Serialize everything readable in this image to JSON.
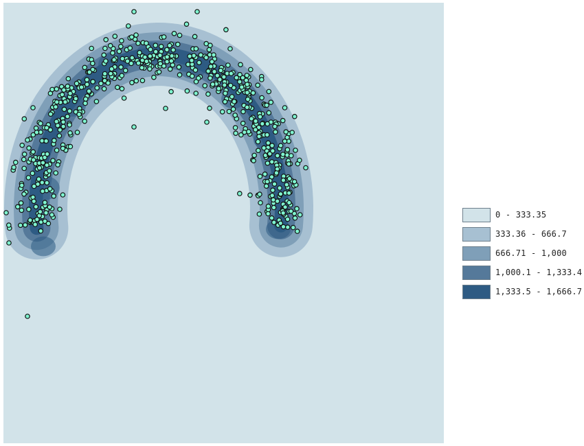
{
  "map": {
    "background_color": "#d2e3e9",
    "density_colors": [
      "#d2e3e9",
      "#a7c0d2",
      "#7f9fb8",
      "#55799a",
      "#2e5b83"
    ],
    "point_fill": "#7ff4cf",
    "point_stroke": "#111111",
    "density_bands": [
      {
        "class": 1,
        "label": "333.36 - 666.7"
      },
      {
        "class": 2,
        "label": "666.71 - 1,000"
      },
      {
        "class": 3,
        "label": "1,000.1 - 1,333.4"
      },
      {
        "class": 4,
        "label": "1,333.5 - 1,666.7"
      }
    ]
  },
  "legend": {
    "items": [
      {
        "label": "0 - 333.35",
        "color": "#d2e3e9"
      },
      {
        "label": "333.36 - 666.7",
        "color": "#a7c0d2"
      },
      {
        "label": "666.71 - 1,000",
        "color": "#7f9fb8"
      },
      {
        "label": "1,000.1 - 1,333.4",
        "color": "#55799a"
      },
      {
        "label": "1,333.5 - 1,666.7",
        "color": "#2e5b83"
      }
    ]
  }
}
